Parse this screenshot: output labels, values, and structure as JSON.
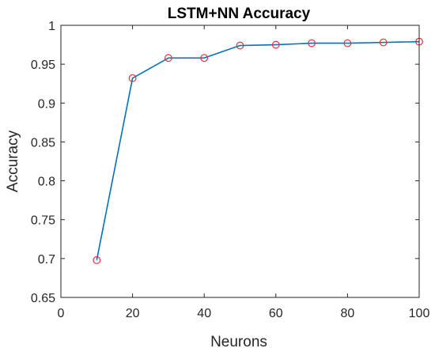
{
  "chart_data": {
    "type": "line",
    "title": "LSTM+NN Accuracy",
    "xlabel": "Neurons",
    "ylabel": "Accuracy",
    "xlim": [
      0,
      100
    ],
    "ylim": [
      0.65,
      1
    ],
    "xticks": [
      "0",
      "20",
      "40",
      "60",
      "80",
      "100"
    ],
    "yticks": [
      "0.65",
      "0.7",
      "0.75",
      "0.8",
      "0.85",
      "0.9",
      "0.95",
      "1"
    ],
    "grid": false,
    "series": [
      {
        "x": [
          10,
          20,
          30,
          40,
          50,
          60,
          70,
          80,
          90,
          100
        ],
        "y": [
          0.698,
          0.932,
          0.958,
          0.958,
          0.974,
          0.975,
          0.977,
          0.977,
          0.978,
          0.979
        ],
        "line_color": "#0072BD",
        "marker_color": "#e8303a",
        "marker": "circle"
      }
    ]
  }
}
